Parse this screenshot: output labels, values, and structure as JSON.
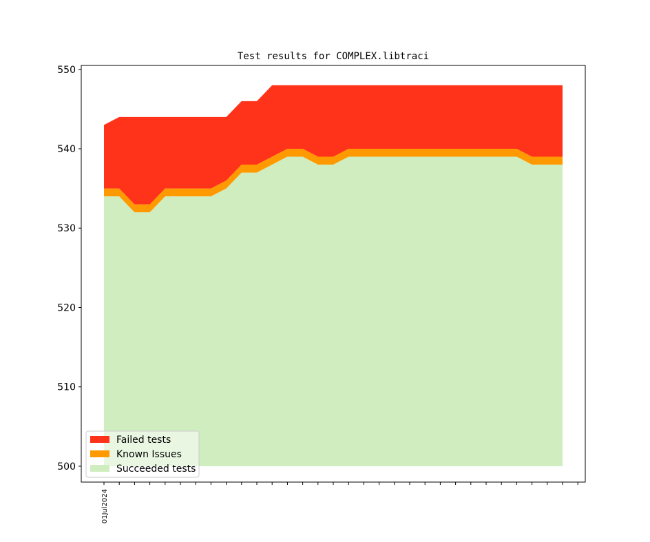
{
  "chart_data": {
    "type": "area",
    "stacked": true,
    "title": "Test results for COMPLEX.libtraci",
    "xlabel": "",
    "ylabel": "",
    "ylim": [
      498,
      550.5
    ],
    "yticks": [
      500,
      510,
      520,
      530,
      540,
      550
    ],
    "x_tick_labels": [
      "01Jul2024",
      "",
      "",
      "",
      "",
      "",
      "",
      "",
      "",
      "",
      "",
      "",
      "",
      "",
      "",
      "",
      "",
      "",
      "",
      "",
      "",
      "",
      "",
      "",
      "",
      "",
      "",
      "",
      "",
      "",
      "",
      ""
    ],
    "baseline": 500,
    "series": [
      {
        "name": "Succeeded tests",
        "color": "#cfedbe",
        "cumulative": [
          534,
          534,
          532,
          532,
          534,
          534,
          534,
          534,
          535,
          537,
          537,
          538,
          539,
          539,
          538,
          538,
          539,
          539,
          539,
          539,
          539,
          539,
          539,
          539,
          539,
          539,
          539,
          539,
          538,
          538,
          538
        ]
      },
      {
        "name": "Known Issues",
        "color": "#ff9900",
        "cumulative": [
          535,
          535,
          533,
          533,
          535,
          535,
          535,
          535,
          536,
          538,
          538,
          539,
          540,
          540,
          539,
          539,
          540,
          540,
          540,
          540,
          540,
          540,
          540,
          540,
          540,
          540,
          540,
          540,
          539,
          539,
          539
        ]
      },
      {
        "name": "Failed tests",
        "color": "#ff331a",
        "cumulative": [
          543,
          544,
          544,
          544,
          544,
          544,
          544,
          544,
          544,
          546,
          546,
          548,
          548,
          548,
          548,
          548,
          548,
          548,
          548,
          548,
          548,
          548,
          548,
          548,
          548,
          548,
          548,
          548,
          548,
          548,
          548
        ]
      }
    ],
    "legend": {
      "placement": "lower-left",
      "entries": [
        "Failed tests",
        "Known Issues",
        "Succeeded tests"
      ]
    },
    "grid": false
  }
}
